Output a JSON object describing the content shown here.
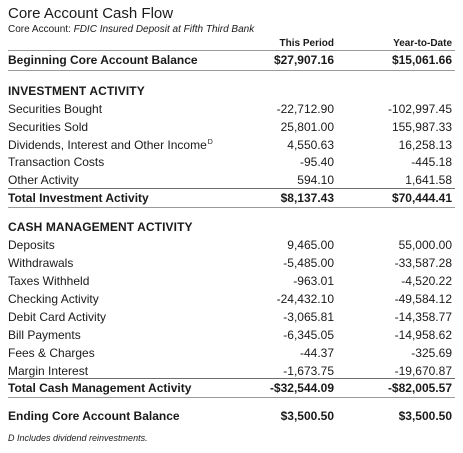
{
  "header": {
    "title": "Core Account Cash Flow",
    "subtitle_label": "Core Account:",
    "subtitle_value": "FDIC Insured Deposit at Fifth Third Bank"
  },
  "columns": {
    "period": "This Period",
    "ytd": "Year-to-Date"
  },
  "beginning": {
    "label": "Beginning Core Account Balance",
    "period": "$27,907.16",
    "ytd": "$15,061.66"
  },
  "investment": {
    "heading": "INVESTMENT ACTIVITY",
    "rows": [
      {
        "label": "Securities Bought",
        "period": "-22,712.90",
        "ytd": "-102,997.45"
      },
      {
        "label": "Securities Sold",
        "period": "25,801.00",
        "ytd": "155,987.33"
      },
      {
        "label": "Dividends, Interest and Other Income",
        "period": "4,550.63",
        "ytd": "16,258.13",
        "note": "D"
      },
      {
        "label": "Transaction Costs",
        "period": "-95.40",
        "ytd": "-445.18"
      },
      {
        "label": "Other Activity",
        "period": "594.10",
        "ytd": "1,641.58"
      }
    ],
    "total": {
      "label": "Total Investment Activity",
      "period": "$8,137.43",
      "ytd": "$70,444.41"
    }
  },
  "cash_management": {
    "heading": "CASH MANAGEMENT ACTIVITY",
    "rows": [
      {
        "label": "Deposits",
        "period": "9,465.00",
        "ytd": "55,000.00"
      },
      {
        "label": "Withdrawals",
        "period": "-5,485.00",
        "ytd": "-33,587.28"
      },
      {
        "label": "Taxes Withheld",
        "period": "-963.01",
        "ytd": "-4,520.22"
      },
      {
        "label": "Checking Activity",
        "period": "-24,432.10",
        "ytd": "-49,584.12"
      },
      {
        "label": "Debit Card Activity",
        "period": "-3,065.81",
        "ytd": "-14,358.77"
      },
      {
        "label": "Bill Payments",
        "period": "-6,345.05",
        "ytd": "-14,958.62"
      },
      {
        "label": "Fees & Charges",
        "period": "-44.37",
        "ytd": "-325.69"
      },
      {
        "label": "Margin Interest",
        "period": "-1,673.75",
        "ytd": "-19,670.87"
      }
    ],
    "total": {
      "label": "Total Cash Management Activity",
      "period": "-$32,544.09",
      "ytd": "-$82,005.57"
    }
  },
  "ending": {
    "label": "Ending Core Account Balance",
    "period": "$3,500.50",
    "ytd": "$3,500.50"
  },
  "footnote": {
    "text": "D  Includes dividend reinvestments."
  }
}
